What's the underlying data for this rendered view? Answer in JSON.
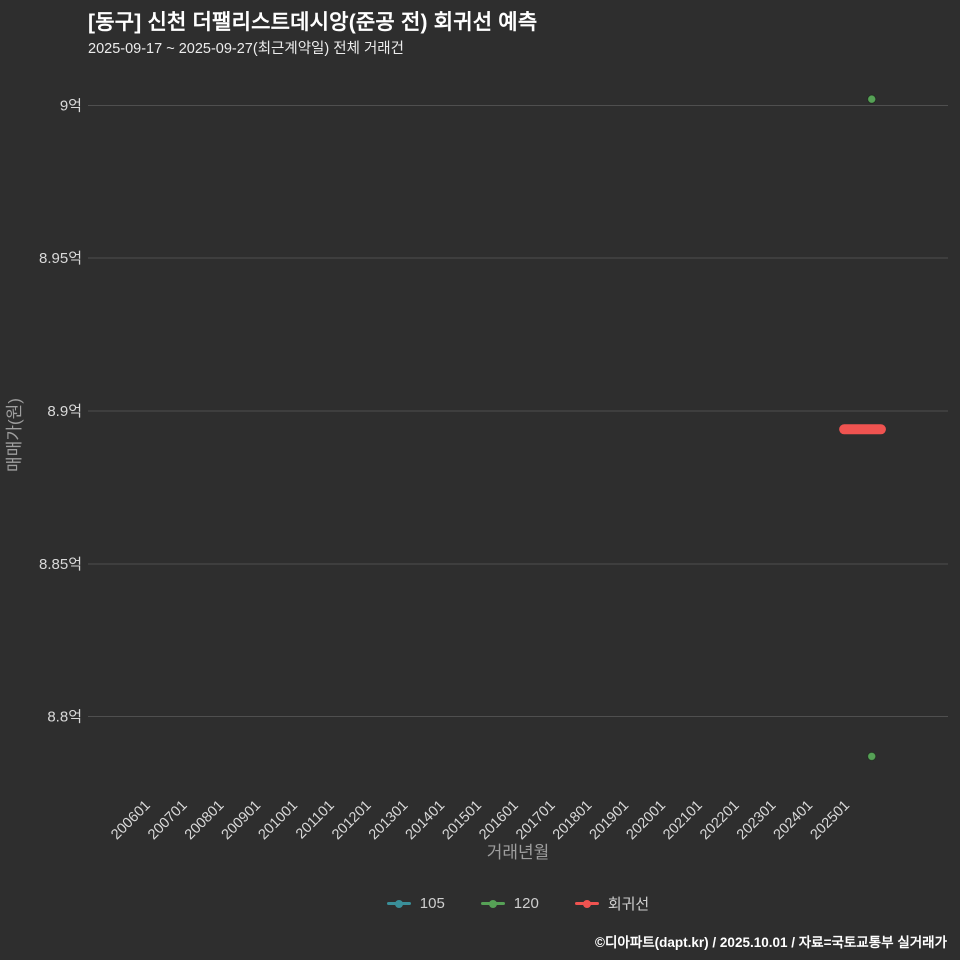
{
  "header": {
    "title": "[동구] 신천 더팰리스트데시앙(준공 전) 회귀선 예측",
    "subtitle": "2025-09-17 ~ 2025-09-27(최근계약일) 전체 거래건"
  },
  "chart_data": {
    "type": "scatter",
    "xlabel": "거래년월",
    "ylabel": "매매가(원)",
    "y_unit": "억",
    "x_ticks": [
      "200601",
      "200701",
      "200801",
      "200901",
      "201001",
      "201101",
      "201201",
      "201301",
      "201401",
      "201501",
      "201601",
      "201701",
      "201801",
      "201901",
      "202001",
      "202101",
      "202201",
      "202301",
      "202401",
      "202501"
    ],
    "y_ticks": [
      {
        "label": "9억",
        "value": 9.0
      },
      {
        "label": "8.95억",
        "value": 8.95
      },
      {
        "label": "8.9억",
        "value": 8.9
      },
      {
        "label": "8.85억",
        "value": 8.85
      },
      {
        "label": "8.8억",
        "value": 8.8
      }
    ],
    "ylim": [
      8.776,
      9.005
    ],
    "grid": "horizontal",
    "legend_position": "bottom-center",
    "series": [
      {
        "name": "105",
        "type": "scatter",
        "color": "#3a8f99",
        "points": []
      },
      {
        "name": "120",
        "type": "scatter",
        "color": "#56a156",
        "points": [
          {
            "x": "202509",
            "y": 9.002
          },
          {
            "x": "202509",
            "y": 8.787
          }
        ]
      },
      {
        "name": "회귀선",
        "type": "line",
        "color": "#ef5350",
        "line_width": 10,
        "points": [
          {
            "x": "202412",
            "y": 8.894
          },
          {
            "x": "202512",
            "y": 8.894
          }
        ]
      }
    ],
    "legend": [
      {
        "label": "105",
        "color": "#3a8f99"
      },
      {
        "label": "120",
        "color": "#56a156"
      },
      {
        "label": "회귀선",
        "color": "#ef5350"
      }
    ]
  },
  "footer": {
    "credit": "©디아파트(dapt.kr) / 2025.10.01 / 자료=국토교통부 실거래가"
  }
}
